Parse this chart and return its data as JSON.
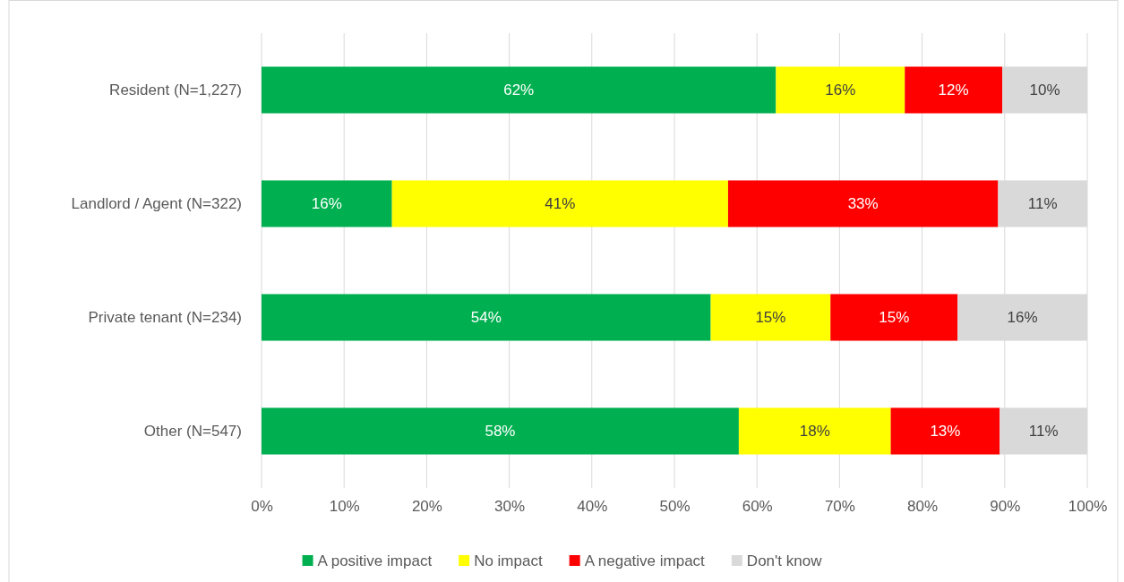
{
  "chart_data": {
    "type": "bar",
    "orientation": "horizontal",
    "stacked": true,
    "categories": [
      "Resident (N=1,227)",
      "Landlord / Agent (N=322)",
      "Private tenant (N=234)",
      "Other (N=547)"
    ],
    "series": [
      {
        "name": "A positive impact",
        "color": "#00b050",
        "values": [
          62.3,
          15.8,
          54.4,
          57.8
        ],
        "value_labels": [
          "62%",
          "16%",
          "54%",
          "58%"
        ]
      },
      {
        "name": "No impact",
        "color": "#ffff00",
        "values": [
          15.6,
          40.7,
          14.5,
          18.4
        ],
        "value_labels": [
          "16%",
          "41%",
          "15%",
          "18%"
        ]
      },
      {
        "name": "A negative impact",
        "color": "#ff0000",
        "values": [
          11.8,
          32.7,
          15.4,
          13.2
        ],
        "value_labels": [
          "12%",
          "33%",
          "15%",
          "13%"
        ]
      },
      {
        "name": "Don't know",
        "color": "#d9d9d9",
        "values": [
          10.3,
          10.8,
          15.7,
          10.6
        ],
        "value_labels": [
          "10%",
          "11%",
          "16%",
          "11%"
        ]
      }
    ],
    "xlim": [
      0,
      100
    ],
    "xticks": [
      {
        "value": 0,
        "label": "0%"
      },
      {
        "value": 10,
        "label": "10%"
      },
      {
        "value": 20,
        "label": "20%"
      },
      {
        "value": 30,
        "label": "30%"
      },
      {
        "value": 40,
        "label": "40%"
      },
      {
        "value": 50,
        "label": "50%"
      },
      {
        "value": 60,
        "label": "60%"
      },
      {
        "value": 70,
        "label": "70%"
      },
      {
        "value": 80,
        "label": "80%"
      },
      {
        "value": 90,
        "label": "90%"
      },
      {
        "value": 100,
        "label": "100%"
      }
    ],
    "grid": "x",
    "legend": "bottom"
  }
}
